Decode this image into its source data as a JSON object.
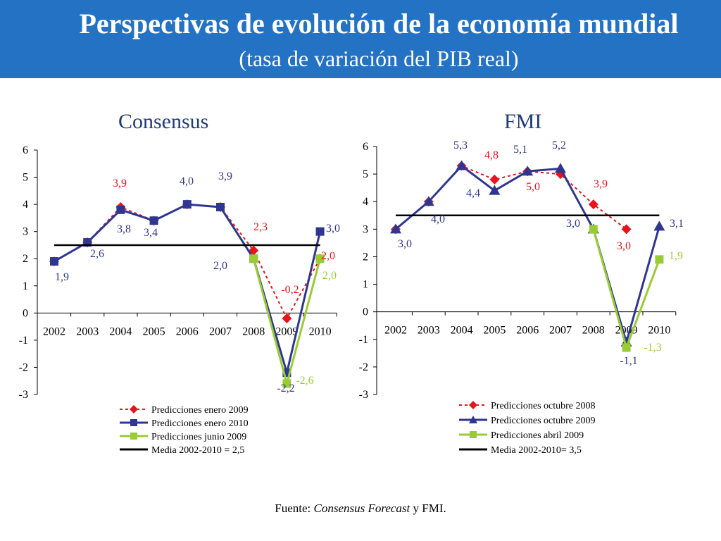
{
  "header": {
    "title": "Perspectivas de evolución de la economía mundial",
    "subtitle": "(tasa de variación del PIB real)"
  },
  "footer": {
    "prefix": "Fuente: ",
    "source_italic": "Consensus Forecast",
    "suffix": " y FMI."
  },
  "colors": {
    "header_bg": "#2372c4",
    "red": "#e8141c",
    "navy": "#2f3690",
    "green": "#99cc33",
    "black": "#000000"
  },
  "chart_data": [
    {
      "type": "line",
      "title": "Consensus",
      "categories": [
        "2002",
        "2003",
        "2004",
        "2005",
        "2006",
        "2007",
        "2008",
        "2009",
        "2010"
      ],
      "ylim": [
        -3,
        6
      ],
      "yticks": [
        "6",
        "5",
        "4",
        "3",
        "2",
        "1",
        "0",
        "-1",
        "-2",
        "-3"
      ],
      "legend_position": "bottom",
      "series": [
        {
          "name": "Predicciones enero 2009",
          "color": "#e8141c",
          "marker": "diamond",
          "dash": true,
          "values": [
            1.9,
            2.6,
            3.9,
            3.4,
            4.0,
            3.9,
            2.3,
            -0.2,
            2.0
          ]
        },
        {
          "name": "Predicciones enero 2010",
          "color": "#2f3690",
          "marker": "square",
          "dash": false,
          "values": [
            1.9,
            2.6,
            3.8,
            3.4,
            4.0,
            3.9,
            2.0,
            -2.2,
            3.0
          ]
        },
        {
          "name": "Predicciones junio 2009",
          "color": "#99cc33",
          "marker": "square",
          "dash": false,
          "values": [
            null,
            null,
            null,
            null,
            null,
            null,
            2.0,
            -2.6,
            2.0
          ]
        },
        {
          "name": "Media 2002-2010 = 2,5",
          "color": "#000000",
          "marker": "none",
          "dash": false,
          "mean": 2.5
        }
      ],
      "annotations": [
        {
          "text": "1,9",
          "color": "#2f3690"
        },
        {
          "text": "2,6",
          "color": "#2f3690"
        },
        {
          "text": "3,9",
          "color": "#e8141c"
        },
        {
          "text": "3,8",
          "color": "#2f3690"
        },
        {
          "text": "3,4",
          "color": "#2f3690"
        },
        {
          "text": "4,0",
          "color": "#2f3690"
        },
        {
          "text": "3,9",
          "color": "#2f3690"
        },
        {
          "text": "2,3",
          "color": "#e8141c"
        },
        {
          "text": "2,0",
          "color": "#2f3690"
        },
        {
          "text": "-0,2",
          "color": "#e8141c"
        },
        {
          "text": "-2,2",
          "color": "#2f3690"
        },
        {
          "text": "-2,6",
          "color": "#99cc33"
        },
        {
          "text": "3,0",
          "color": "#2f3690"
        },
        {
          "text": "2,0",
          "color": "#e8141c"
        },
        {
          "text": "2,0",
          "color": "#99cc33"
        }
      ]
    },
    {
      "type": "line",
      "title": "FMI",
      "categories": [
        "2002",
        "2003",
        "2004",
        "2005",
        "2006",
        "2007",
        "2008",
        "2009",
        "2010"
      ],
      "ylim": [
        -3,
        6
      ],
      "yticks": [
        "6",
        "5",
        "4",
        "3",
        "2",
        "1",
        "0",
        "-1",
        "-2",
        "-3"
      ],
      "legend_position": "bottom",
      "series": [
        {
          "name": "Predicciones octubre 2008",
          "color": "#e8141c",
          "marker": "diamond",
          "dash": true,
          "values": [
            3.0,
            4.0,
            5.3,
            4.8,
            5.1,
            5.0,
            3.9,
            3.0,
            null
          ]
        },
        {
          "name": "Predicciones octubre 2009",
          "color": "#2f3690",
          "marker": "triangle",
          "dash": false,
          "values": [
            3.0,
            4.0,
            5.3,
            4.4,
            5.1,
            5.2,
            3.0,
            -1.1,
            3.1
          ]
        },
        {
          "name": "Predicciones abril 2009",
          "color": "#99cc33",
          "marker": "square",
          "dash": false,
          "values": [
            null,
            null,
            null,
            null,
            null,
            null,
            3.0,
            -1.3,
            1.9
          ]
        },
        {
          "name": "Media 2002-2010= 3,5",
          "color": "#000000",
          "marker": "none",
          "dash": false,
          "mean": 3.5
        }
      ],
      "annotations": [
        {
          "text": "3,0",
          "color": "#2f3690"
        },
        {
          "text": "4,0",
          "color": "#2f3690"
        },
        {
          "text": "5,3",
          "color": "#2f3690"
        },
        {
          "text": "4,8",
          "color": "#e8141c"
        },
        {
          "text": "4,4",
          "color": "#2f3690"
        },
        {
          "text": "5,1",
          "color": "#2f3690"
        },
        {
          "text": "5,0",
          "color": "#e8141c"
        },
        {
          "text": "5,2",
          "color": "#2f3690"
        },
        {
          "text": "3,9",
          "color": "#e8141c"
        },
        {
          "text": "3,0",
          "color": "#2f3690"
        },
        {
          "text": "3,0",
          "color": "#e8141c"
        },
        {
          "text": "-1,1",
          "color": "#2f3690"
        },
        {
          "text": "-1,3",
          "color": "#99cc33"
        },
        {
          "text": "3,1",
          "color": "#2f3690"
        },
        {
          "text": "1,9",
          "color": "#99cc33"
        }
      ]
    }
  ]
}
